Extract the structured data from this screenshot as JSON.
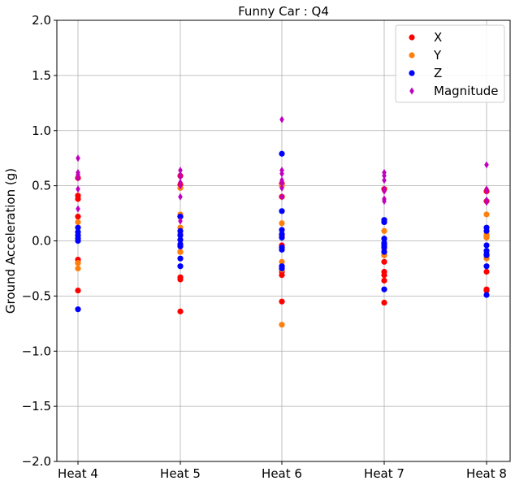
{
  "chart_data": {
    "type": "scatter",
    "title": "Funny Car : Q4",
    "xlabel": "",
    "ylabel": "Ground Acceleration (g)",
    "categories": [
      "Heat 4",
      "Heat 5",
      "Heat 6",
      "Heat 7",
      "Heat 8"
    ],
    "ylim": [
      -2.0,
      2.0
    ],
    "yticks": [
      -2.0,
      -1.5,
      -1.0,
      -0.5,
      0.0,
      0.5,
      1.0,
      1.5,
      2.0
    ],
    "ytick_labels": [
      "−2.0",
      "−1.5",
      "−1.0",
      "−0.5",
      "0.0",
      "0.5",
      "1.0",
      "1.5",
      "2.0"
    ],
    "grid": true,
    "legend_position": "top-right",
    "series": [
      {
        "name": "X",
        "color": "#ff0000",
        "marker": "circle",
        "values": [
          [
            0.41,
            0.38,
            0.22,
            -0.17,
            -0.2,
            -0.45,
            0.57
          ],
          [
            0.59,
            0.51,
            -0.1,
            -0.33,
            -0.35,
            -0.64,
            0.22
          ],
          [
            0.52,
            0.4,
            -0.04,
            -0.28,
            -0.31,
            -0.55,
            0.05
          ],
          [
            0.47,
            -0.13,
            -0.19,
            -0.28,
            -0.31,
            -0.36,
            -0.56
          ],
          [
            0.45,
            0.36,
            0.04,
            -0.28,
            -0.44,
            -0.45
          ]
        ]
      },
      {
        "name": "Y",
        "color": "#ff7f0e",
        "marker": "circle",
        "values": [
          [
            0.17,
            0.03,
            -0.2,
            -0.25
          ],
          [
            0.48,
            0.24,
            0.12,
            0.07,
            -0.1
          ],
          [
            0.5,
            0.16,
            -0.19,
            -0.26,
            -0.76
          ],
          [
            0.17,
            0.09,
            0.02,
            -0.08,
            -0.13
          ],
          [
            0.24,
            0.06,
            0.03,
            -0.15,
            -0.16
          ]
        ]
      },
      {
        "name": "Z",
        "color": "#0000ff",
        "marker": "circle",
        "values": [
          [
            0.12,
            0.08,
            0.05,
            0.02,
            0.0,
            -0.62
          ],
          [
            0.22,
            0.09,
            0.05,
            0.01,
            -0.03,
            -0.05,
            -0.16,
            -0.23
          ],
          [
            0.79,
            0.27,
            0.1,
            0.06,
            0.03,
            -0.06,
            -0.08,
            -0.23,
            -0.25
          ],
          [
            0.19,
            0.17,
            0.02,
            -0.02,
            -0.04,
            -0.06,
            -0.1,
            -0.44
          ],
          [
            0.12,
            0.09,
            -0.04,
            -0.09,
            -0.12,
            -0.13,
            -0.23,
            -0.49
          ]
        ]
      },
      {
        "name": "Magnitude",
        "color": "#bf00bf",
        "marker": "thin_diamond",
        "values": [
          [
            0.75,
            0.62,
            0.6,
            0.57,
            0.47,
            0.29
          ],
          [
            0.64,
            0.6,
            0.58,
            0.53,
            0.5,
            0.4,
            0.18
          ],
          [
            1.1,
            0.64,
            0.61,
            0.55,
            0.52,
            0.48,
            0.4
          ],
          [
            0.62,
            0.59,
            0.55,
            0.47,
            0.45,
            0.38,
            0.36
          ],
          [
            0.69,
            0.47,
            0.45,
            0.37,
            0.35
          ]
        ]
      }
    ]
  }
}
